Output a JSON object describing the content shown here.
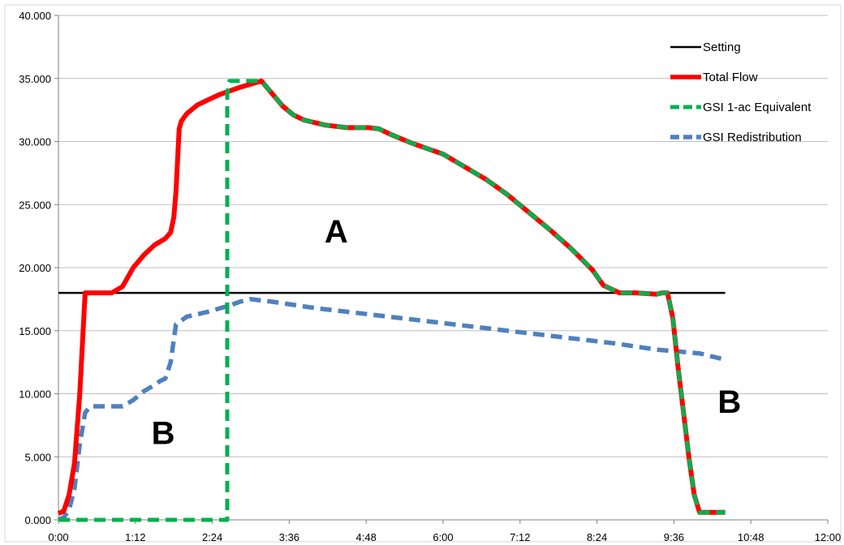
{
  "chart_data": {
    "type": "line",
    "x_unit": "minutes",
    "x_tick_labels": [
      "0:00",
      "1:12",
      "2:24",
      "3:36",
      "4:48",
      "6:00",
      "7:12",
      "8:24",
      "9:36",
      "10:48",
      "12:00"
    ],
    "x_ticks": [
      0,
      72,
      144,
      216,
      288,
      360,
      432,
      504,
      576,
      648,
      720
    ],
    "xlim": [
      0,
      720
    ],
    "y_tick_labels": [
      "0.000",
      "5.000",
      "10.000",
      "15.000",
      "20.000",
      "25.000",
      "30.000",
      "35.000",
      "40.000"
    ],
    "y_ticks": [
      0,
      5000,
      10000,
      15000,
      20000,
      25000,
      30000,
      35000,
      40000
    ],
    "ylim": [
      0,
      40000
    ],
    "grid": "horizontal",
    "legend_position": "top-right",
    "series": [
      {
        "name": "Setting",
        "color": "#000000",
        "style": "solid",
        "x": [
          0,
          624
        ],
        "y": [
          18000,
          18000
        ]
      },
      {
        "name": "Total Flow",
        "color": "#ff0000",
        "style": "solid",
        "x": [
          0,
          5,
          10,
          15,
          20,
          25,
          30,
          35,
          40,
          50,
          60,
          70,
          80,
          90,
          100,
          105,
          108,
          110,
          113,
          115,
          120,
          130,
          140,
          150,
          170,
          190,
          200,
          210,
          220,
          230,
          250,
          270,
          290,
          300,
          310,
          330,
          360,
          380,
          400,
          420,
          440,
          460,
          480,
          500,
          510,
          525,
          530,
          540,
          560,
          565,
          570,
          575,
          580,
          585,
          590,
          595,
          600,
          605,
          610,
          615,
          620,
          624
        ],
        "y": [
          500,
          700,
          2000,
          4500,
          10000,
          18000,
          18000,
          18000,
          18000,
          18000,
          18500,
          20000,
          21000,
          21800,
          22300,
          22800,
          24000,
          26000,
          31000,
          31600,
          32200,
          32900,
          33300,
          33700,
          34300,
          34800,
          33800,
          32800,
          32100,
          31700,
          31300,
          31100,
          31100,
          31000,
          30600,
          29900,
          29000,
          28000,
          27000,
          25800,
          24400,
          23000,
          21500,
          19800,
          18600,
          18000,
          18000,
          18000,
          17900,
          18000,
          18000,
          16000,
          12000,
          8500,
          5000,
          2000,
          600,
          600,
          600,
          600,
          600,
          600
        ]
      },
      {
        "name": "GSI 1-ac Equivalent",
        "color": "#00b050",
        "style": "dashed",
        "x": [
          0,
          150,
          158,
          158,
          160,
          170,
          190,
          200,
          210,
          220,
          230,
          250,
          270,
          290,
          300,
          310,
          330,
          360,
          380,
          400,
          420,
          440,
          460,
          480,
          500,
          510,
          525,
          530,
          540,
          560,
          565,
          570,
          575,
          580,
          585,
          590,
          595,
          600,
          605,
          610,
          615,
          620,
          624
        ],
        "y": [
          0,
          0,
          0,
          33800,
          34800,
          34800,
          34800,
          33800,
          32800,
          32100,
          31700,
          31300,
          31100,
          31100,
          31000,
          30600,
          29900,
          29000,
          28000,
          27000,
          25800,
          24400,
          23000,
          21500,
          19800,
          18600,
          18000,
          18000,
          18000,
          17900,
          18000,
          18000,
          16000,
          12000,
          8500,
          5000,
          2000,
          600,
          600,
          600,
          600,
          600,
          600
        ]
      },
      {
        "name": "GSI Redistribution",
        "color": "#4f81bd",
        "style": "dashed",
        "x": [
          0,
          5,
          10,
          15,
          20,
          25,
          30,
          35,
          40,
          50,
          60,
          70,
          80,
          90,
          95,
          100,
          105,
          110,
          120,
          140,
          160,
          170,
          180,
          200,
          240,
          290,
          360,
          430,
          480,
          520,
          560,
          600,
          624
        ],
        "y": [
          0,
          200,
          800,
          2500,
          6000,
          8500,
          9000,
          9000,
          9000,
          9000,
          9000,
          9500,
          10200,
          10700,
          11000,
          11200,
          12500,
          15500,
          16100,
          16500,
          17000,
          17300,
          17500,
          17300,
          16800,
          16300,
          15600,
          14900,
          14400,
          14000,
          13500,
          13200,
          12700
        ]
      }
    ],
    "annotations": [
      {
        "text": "A",
        "x": 260,
        "y": 22000
      },
      {
        "text": "B",
        "x": 98,
        "y": 6000
      },
      {
        "text": "B",
        "x": 628,
        "y": 8500
      }
    ]
  }
}
